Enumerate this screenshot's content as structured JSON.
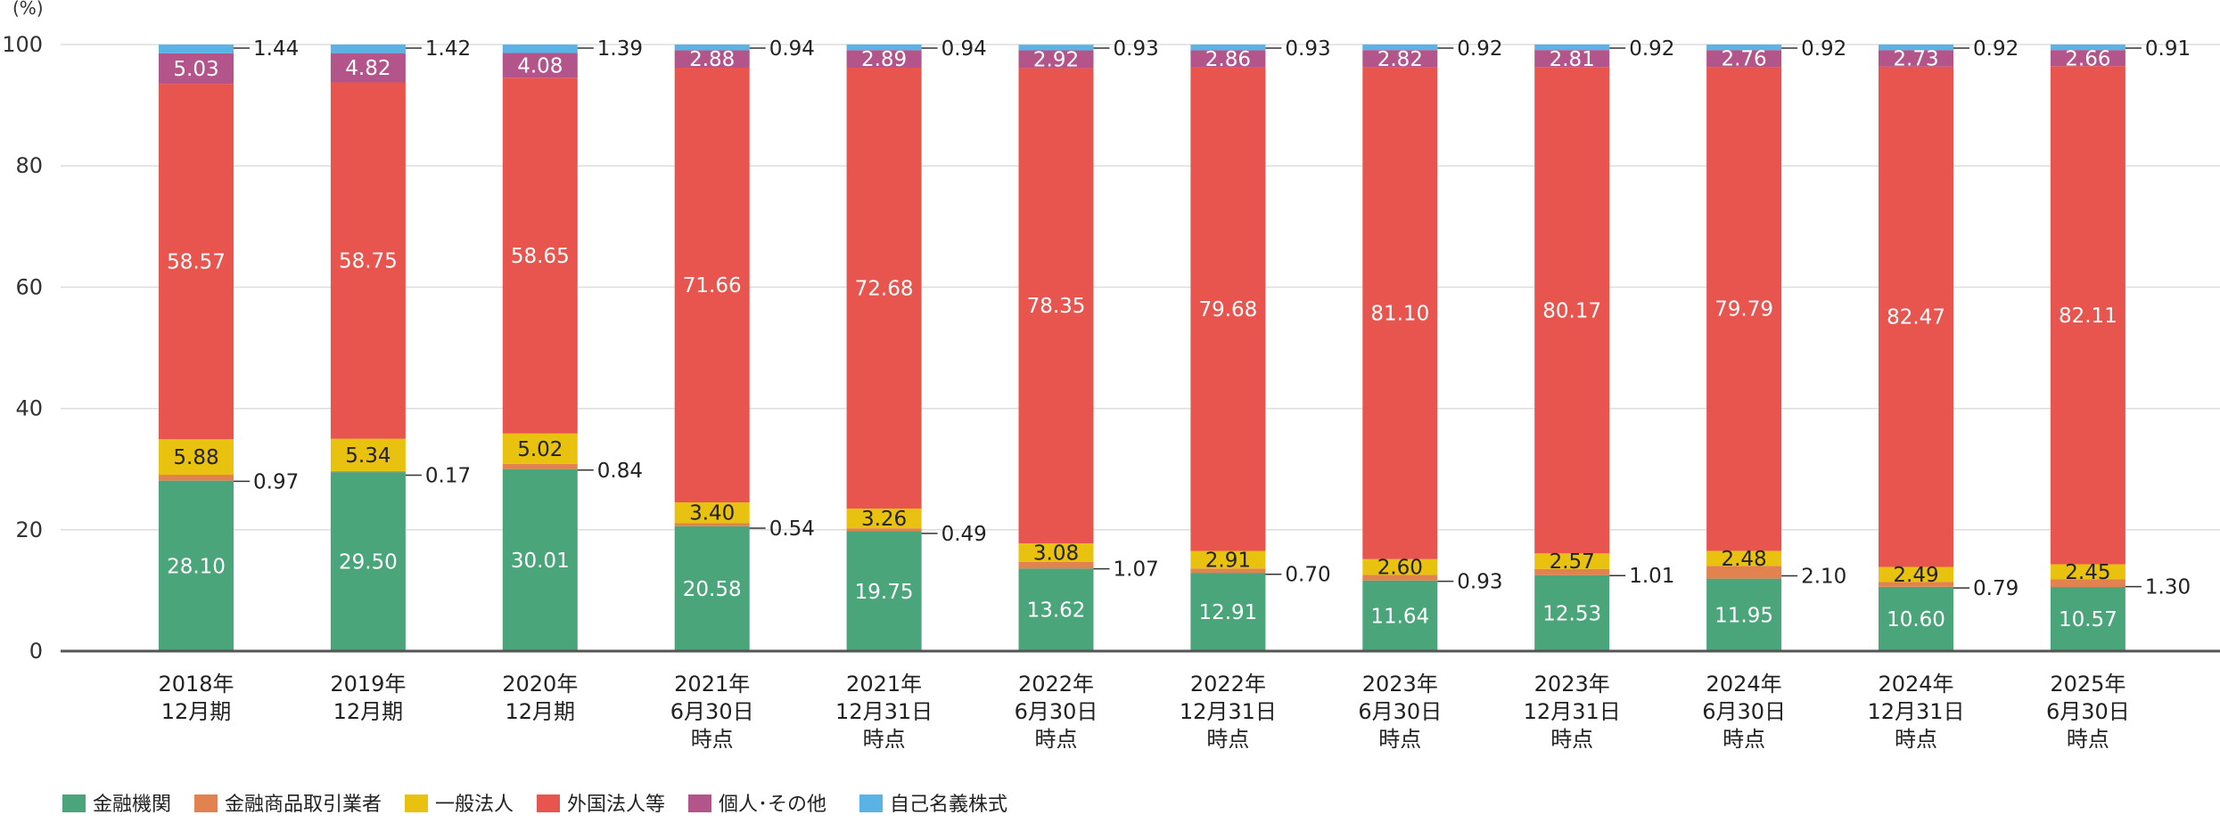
{
  "chart_data": {
    "type": "bar",
    "stacked": true,
    "title": "",
    "unit_label": "(%)",
    "xlabel": "",
    "ylabel": "",
    "ylim": [
      0,
      100
    ],
    "yticks": [
      "0",
      "20",
      "40",
      "60",
      "80",
      "100"
    ],
    "grid": true,
    "legend_position": "bottom-left",
    "categories": [
      [
        "2018年",
        "12月期"
      ],
      [
        "2019年",
        "12月期"
      ],
      [
        "2020年",
        "12月期"
      ],
      [
        "2021年",
        "6月30日",
        "時点"
      ],
      [
        "2021年",
        "12月31日",
        "時点"
      ],
      [
        "2022年",
        "6月30日",
        "時点"
      ],
      [
        "2022年",
        "12月31日",
        "時点"
      ],
      [
        "2023年",
        "6月30日",
        "時点"
      ],
      [
        "2023年",
        "12月31日",
        "時点"
      ],
      [
        "2024年",
        "6月30日",
        "時点"
      ],
      [
        "2024年",
        "12月31日",
        "時点"
      ],
      [
        "2025年",
        "6月30日",
        "時点"
      ]
    ],
    "series": [
      {
        "name": "金融機関",
        "color": "#4aa57b",
        "label_mode": "inside",
        "values": [
          28.1,
          29.5,
          30.01,
          20.58,
          19.75,
          13.62,
          12.91,
          11.64,
          12.53,
          11.95,
          10.6,
          10.57
        ],
        "labels": [
          "28.10",
          "29.50",
          "30.01",
          "20.58",
          "19.75",
          "13.62",
          "12.91",
          "11.64",
          "12.53",
          "11.95",
          "10.60",
          "10.57"
        ]
      },
      {
        "name": "金融商品取引業者",
        "color": "#e2834f",
        "label_mode": "callout",
        "values": [
          0.97,
          0.17,
          0.84,
          0.54,
          0.49,
          1.07,
          0.7,
          0.93,
          1.01,
          2.1,
          0.79,
          1.3
        ],
        "labels": [
          "0.97",
          "0.17",
          "0.84",
          "0.54",
          "0.49",
          "1.07",
          "0.70",
          "0.93",
          "1.01",
          "2.10",
          "0.79",
          "1.30"
        ]
      },
      {
        "name": "一般法人",
        "color": "#e8c20e",
        "label_mode": "inside",
        "values": [
          5.88,
          5.34,
          5.02,
          3.4,
          3.26,
          3.08,
          2.91,
          2.6,
          2.57,
          2.48,
          2.49,
          2.45
        ],
        "labels": [
          "5.88",
          "5.34",
          "5.02",
          "3.40",
          "3.26",
          "3.08",
          "2.91",
          "2.60",
          "2.57",
          "2.48",
          "2.49",
          "2.45"
        ]
      },
      {
        "name": "外国法人等",
        "color": "#e8554e",
        "label_mode": "inside",
        "values": [
          58.57,
          58.75,
          58.65,
          71.66,
          72.68,
          78.35,
          79.68,
          81.1,
          80.17,
          79.79,
          82.47,
          82.11
        ],
        "labels": [
          "58.57",
          "58.75",
          "58.65",
          "71.66",
          "72.68",
          "78.35",
          "79.68",
          "81.10",
          "80.17",
          "79.79",
          "82.47",
          "82.11"
        ]
      },
      {
        "name": "個人･その他",
        "color": "#b3548a",
        "label_mode": "inside",
        "values": [
          5.03,
          4.82,
          4.08,
          2.88,
          2.89,
          2.92,
          2.86,
          2.82,
          2.81,
          2.76,
          2.73,
          2.66
        ],
        "labels": [
          "5.03",
          "4.82",
          "4.08",
          "2.88",
          "2.89",
          "2.92",
          "2.86",
          "2.82",
          "2.81",
          "2.76",
          "2.73",
          "2.66"
        ]
      },
      {
        "name": "自己名義株式",
        "color": "#5ab3e4",
        "label_mode": "callout",
        "values": [
          1.44,
          1.42,
          1.39,
          0.94,
          0.94,
          0.93,
          0.93,
          0.92,
          0.92,
          0.92,
          0.92,
          0.91
        ],
        "labels": [
          "1.44",
          "1.42",
          "1.39",
          "0.94",
          "0.94",
          "0.93",
          "0.93",
          "0.92",
          "0.92",
          "0.92",
          "0.92",
          "0.91"
        ]
      }
    ]
  }
}
